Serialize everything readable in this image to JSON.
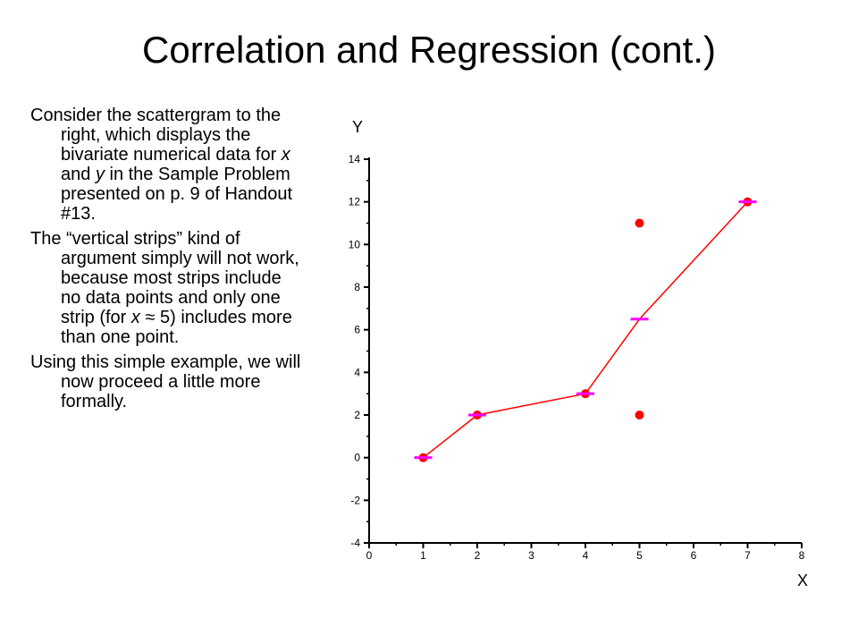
{
  "slide": {
    "title": "Correlation and Regression (cont.)"
  },
  "body": {
    "paragraphs": [
      [
        {
          "text": "Consider the scattergram to the right, which displays the bivariate numerical data for "
        },
        {
          "text": "x",
          "italic": true
        },
        {
          "text": " and "
        },
        {
          "text": "y",
          "italic": true
        },
        {
          "text": " in the Sample Problem presented on p. 9 of Handout #13."
        }
      ],
      [
        {
          "text": "The “vertical strips” kind of argument simply will not work, because most strips include no data points and only one strip (for "
        },
        {
          "text": "x",
          "italic": true
        },
        {
          "text": " ≈ 5) includes more than one point."
        }
      ],
      [
        {
          "text": "Using this simple example, we will now proceed a little more formally."
        }
      ]
    ]
  },
  "chart_data": {
    "type": "scatter",
    "xlabel": "X",
    "ylabel": "Y",
    "xlim": [
      0,
      8
    ],
    "ylim": [
      -4,
      14
    ],
    "x_ticks": [
      "0",
      "1",
      "2",
      "3",
      "4",
      "5",
      "6",
      "7",
      "8"
    ],
    "y_ticks": [
      "-4",
      "-2",
      "0",
      "2",
      "4",
      "6",
      "8",
      "10",
      "12",
      "14"
    ],
    "points": [
      {
        "x": 1,
        "y": 0
      },
      {
        "x": 2,
        "y": 2
      },
      {
        "x": 4,
        "y": 3
      },
      {
        "x": 5,
        "y": 2
      },
      {
        "x": 5,
        "y": 11
      },
      {
        "x": 7,
        "y": 12
      }
    ],
    "strip_means": [
      {
        "x": 1,
        "y": 0
      },
      {
        "x": 2,
        "y": 2
      },
      {
        "x": 4,
        "y": 3
      },
      {
        "x": 5,
        "y": 6.5
      },
      {
        "x": 7,
        "y": 12
      }
    ],
    "grid": false,
    "legend": "none",
    "colors": {
      "points": "#ff0000",
      "line": "#ff0000",
      "mean_markers": "#ff00ff",
      "axes": "#000000"
    }
  }
}
